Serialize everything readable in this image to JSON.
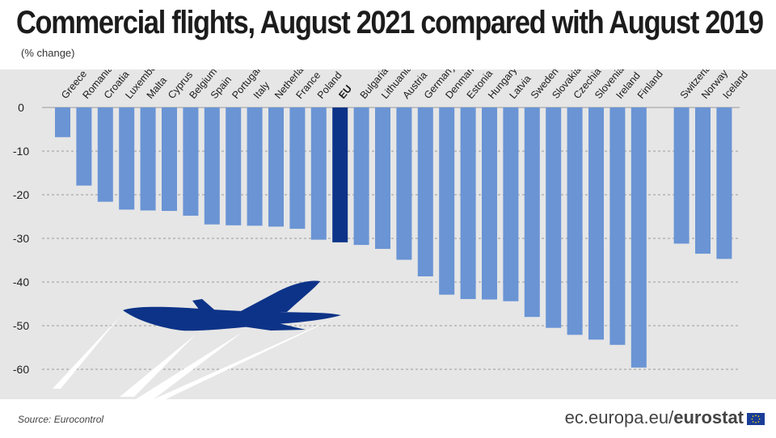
{
  "header": {
    "title": "Commercial flights, August 2021 compared with August 2019",
    "subtitle": "(% change)"
  },
  "footer": {
    "source": "Source: Eurocontrol",
    "domain": "ec.europa.eu/",
    "brand": "eurostat"
  },
  "colors": {
    "bar": "#6a94d4",
    "highlight": "#0d3388",
    "plane": "#0d3388",
    "grid": "#9a9a9a"
  },
  "icons": {
    "plane": "airplane-icon",
    "flag": "eu-flag-icon"
  },
  "chart_data": {
    "type": "bar",
    "title": "Commercial flights, August 2021 compared with August 2019",
    "ylabel": "(% change)",
    "ylim": [
      -65,
      0
    ],
    "yticks": [
      0,
      -10,
      -20,
      -30,
      -40,
      -50,
      -60
    ],
    "grid": true,
    "highlight": [
      "EU"
    ],
    "categories": [
      "Greece",
      "Romania",
      "Croatia",
      "Luxembourg",
      "Malta",
      "Cyprus",
      "Belgium",
      "Spain",
      "Portugal",
      "Italy",
      "Netherlands",
      "France",
      "Poland",
      "EU",
      "Bulgaria",
      "Lithuania",
      "Austria",
      "Germany",
      "Denmark",
      "Estonia",
      "Hungary",
      "Latvia",
      "Sweden",
      "Slovakia",
      "Czechia",
      "Slovenia",
      "Ireland",
      "Finland",
      "",
      "Switzerland",
      "Norway",
      "Iceland"
    ],
    "values": [
      -6.8,
      -17.9,
      -21.6,
      -23.4,
      -23.6,
      -23.7,
      -24.8,
      -26.8,
      -27.0,
      -27.1,
      -27.3,
      -27.8,
      -30.3,
      -30.9,
      -31.5,
      -32.4,
      -34.9,
      -38.7,
      -42.9,
      -43.9,
      -44.0,
      -44.4,
      -48.0,
      -50.5,
      -52.1,
      -53.2,
      -54.4,
      -59.6,
      null,
      -31.2,
      -33.5,
      -34.7
    ]
  }
}
